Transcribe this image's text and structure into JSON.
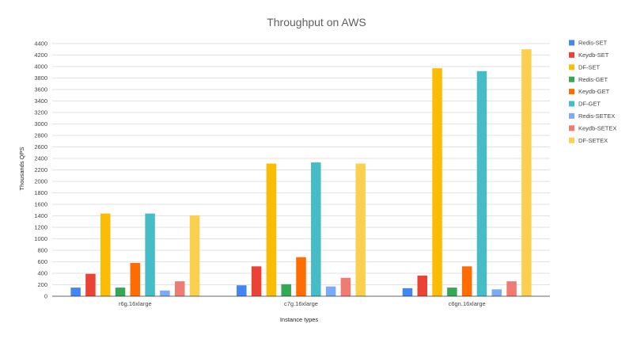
{
  "chart_data": {
    "type": "bar",
    "title": "Throughput on AWS",
    "xlabel": "Instance types",
    "ylabel": "Thousands QPS",
    "ylim": [
      0,
      4400
    ],
    "ytick_step": 200,
    "grid": true,
    "legend_position": "right",
    "categories": [
      "r6g.16xlarge",
      "c7g.16xlarge",
      "c6gn.16xlarge"
    ],
    "series": [
      {
        "name": "Redis-SET",
        "color": "#4285f4",
        "values": [
          150,
          190,
          140
        ]
      },
      {
        "name": "Keydb-SET",
        "color": "#ea4335",
        "values": [
          390,
          520,
          360
        ]
      },
      {
        "name": "DF-SET",
        "color": "#fbbc04",
        "values": [
          1440,
          2310,
          3970
        ]
      },
      {
        "name": "Redis-GET",
        "color": "#34a853",
        "values": [
          150,
          210,
          150
        ]
      },
      {
        "name": "Keydb-GET",
        "color": "#ff6d01",
        "values": [
          580,
          680,
          520
        ]
      },
      {
        "name": "DF-GET",
        "color": "#46bdc6",
        "values": [
          1440,
          2330,
          3920
        ]
      },
      {
        "name": "Redis-SETEX",
        "color": "#7baaf7",
        "values": [
          100,
          170,
          120
        ]
      },
      {
        "name": "Keydb-SETEX",
        "color": "#f07b72",
        "values": [
          260,
          320,
          260
        ]
      },
      {
        "name": "DF-SETEX",
        "color": "#fcd04f",
        "values": [
          1410,
          2310,
          4300
        ]
      }
    ]
  }
}
